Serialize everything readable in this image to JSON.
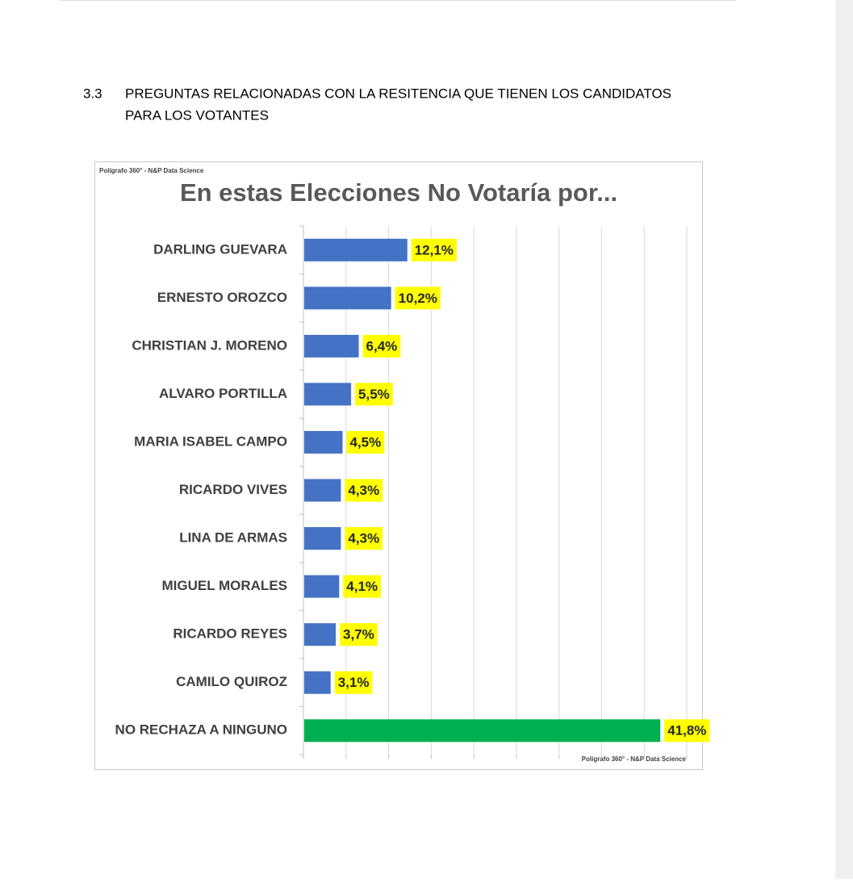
{
  "section": {
    "number": "3.3",
    "title_lines": [
      "PREGUNTAS RELACIONADAS CON LA RESITENCIA QUE TIENEN LOS CANDIDATOS",
      "PARA LOS VOTANTES"
    ]
  },
  "chart_data": {
    "type": "hbar",
    "watermark": "Polígrafo 360° - N&P Data Science",
    "title": "En estas Elecciones No Votaría por...",
    "source": "Polígrafo 360° - N&P Data Science",
    "categories": [
      "DARLING GUEVARA",
      "ERNESTO OROZCO",
      "CHRISTIAN J. MORENO",
      "ALVARO PORTILLA",
      "MARIA ISABEL CAMPO",
      "RICARDO VIVES",
      "LINA DE ARMAS",
      "MIGUEL MORALES",
      "RICARDO REYES",
      "CAMILO QUIROZ",
      "NO RECHAZA A NINGUNO"
    ],
    "values": [
      12.1,
      10.2,
      6.4,
      5.5,
      4.5,
      4.3,
      4.3,
      4.1,
      3.7,
      3.1,
      41.8
    ],
    "value_labels": [
      "12,1%",
      "10,2%",
      "6,4%",
      "5,5%",
      "4,5%",
      "4,3%",
      "4,3%",
      "4,1%",
      "3,7%",
      "3,1%",
      "41,8%"
    ],
    "colors": [
      "#4472c4",
      "#4472c4",
      "#4472c4",
      "#4472c4",
      "#4472c4",
      "#4472c4",
      "#4472c4",
      "#4472c4",
      "#4472c4",
      "#4472c4",
      "#00b050"
    ],
    "label_background": "#ffff00",
    "xlim": [
      0,
      45
    ],
    "xticks": [
      0,
      5,
      10,
      15,
      20,
      25,
      30,
      35,
      40,
      45
    ],
    "grid": true
  }
}
